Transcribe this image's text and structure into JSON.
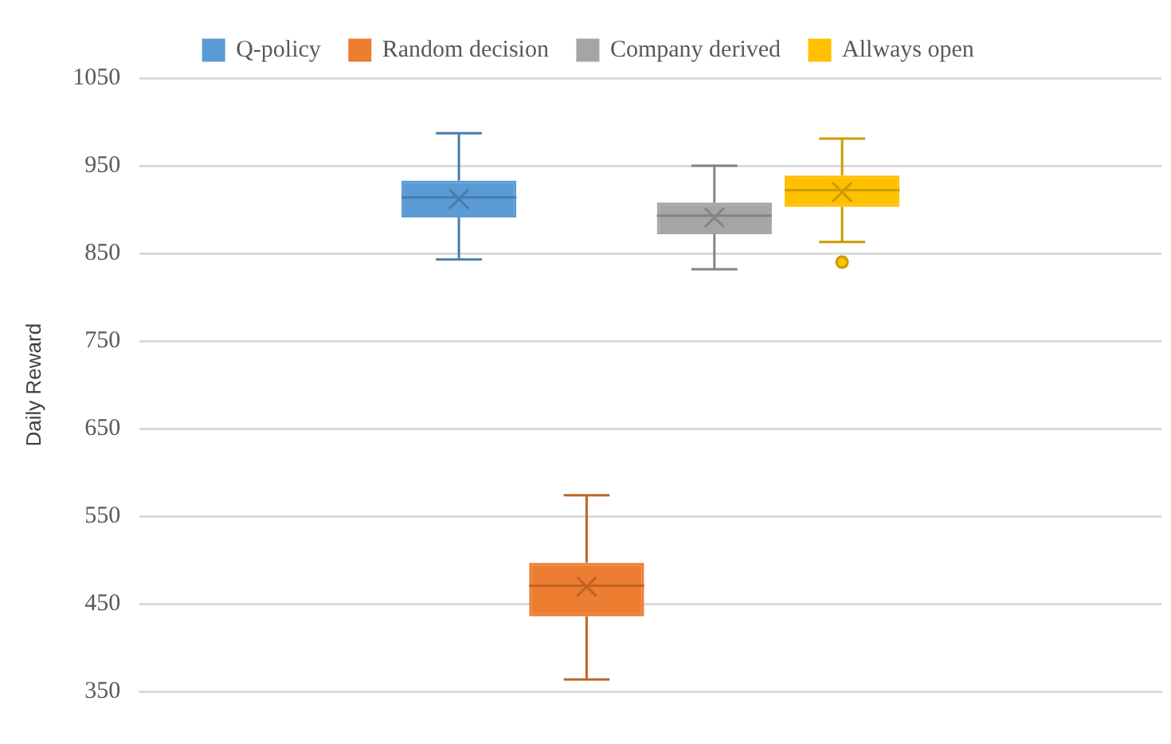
{
  "chart_data": {
    "type": "box",
    "ylabel": "Daily Reward",
    "categories": [
      null
    ],
    "ylim": [
      350,
      1050
    ],
    "yticks": [
      350,
      450,
      550,
      650,
      750,
      850,
      950,
      1050
    ],
    "grid": "y",
    "legend": "top",
    "marker": "cross",
    "series": [
      {
        "name": "Q-policy",
        "color": "#5b9bd5",
        "boxes": [
          {
            "low": 843,
            "q1": 891,
            "median": 914,
            "q3": 933,
            "high": 987,
            "mean": 912
          }
        ]
      },
      {
        "name": "Random decision",
        "color": "#ed7d31",
        "boxes": [
          {
            "low": 364,
            "q1": 436,
            "median": 471,
            "q3": 497,
            "high": 574,
            "mean": 470
          }
        ]
      },
      {
        "name": "Company derived",
        "color": "#a5a5a5",
        "boxes": [
          {
            "low": 832,
            "q1": 872,
            "median": 893,
            "q3": 908,
            "high": 950,
            "mean": 891
          }
        ]
      },
      {
        "name": "Allways open",
        "color": "#ffc000",
        "boxes": [
          {
            "low": 863,
            "q1": 903,
            "median": 922,
            "q3": 939,
            "high": 981,
            "mean": 920,
            "outliers": [
              840
            ]
          }
        ]
      }
    ]
  }
}
